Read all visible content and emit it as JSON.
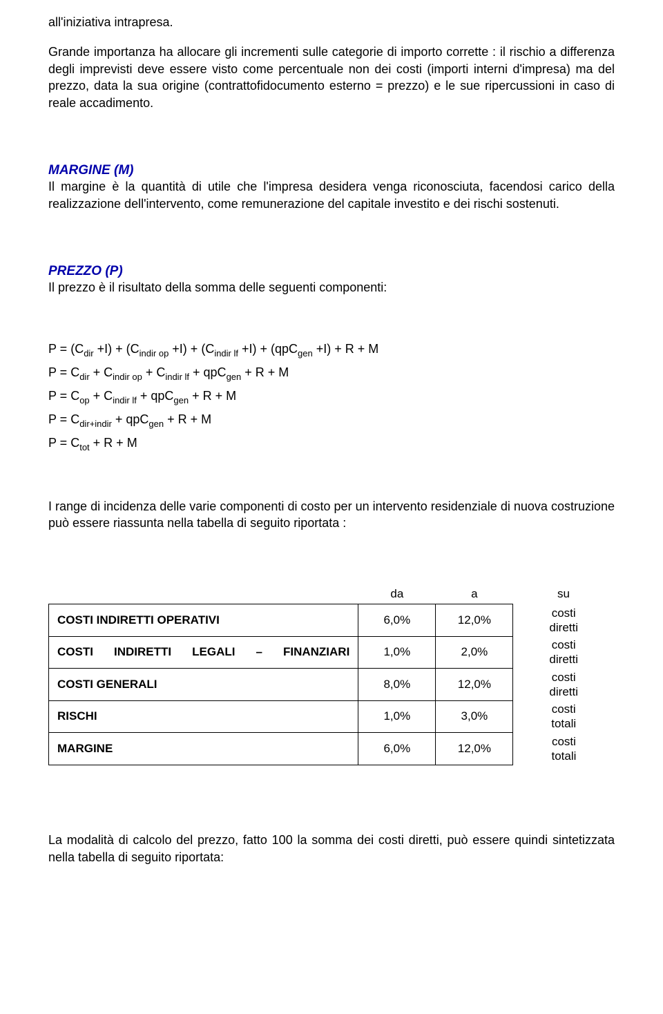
{
  "intro_fragment": "all'iniziativa intrapresa.",
  "intro_para": "Grande importanza ha allocare gli incrementi sulle categorie di importo corrette : il rischio a differenza degli imprevisti deve essere visto come percentuale non dei costi (importi interni d'impresa) ma del prezzo, data la sua origine (contrattofidocumento esterno = prezzo) e le sue ripercussioni in caso di reale accadimento.",
  "margine": {
    "title": "MARGINE (M)",
    "body": "Il margine è la quantità di utile che l'impresa desidera venga riconosciuta, facendosi carico della realizzazione dell'intervento, come remunerazione del capitale investito e dei rischi sostenuti."
  },
  "prezzo": {
    "title": "PREZZO (P)",
    "intro": "Il prezzo è il risultato della somma delle seguenti componenti:",
    "formulas_html": [
      "P = (C<span class='sub'>dir</span> +I) + (C<span class='sub'>indir op</span> +I) + (C<span class='sub'>indir lf</span> +I) + (qpC<span class='sub'>gen</span> +I) + R + M",
      "P = C<span class='sub'>dir</span> + C<span class='sub'>indir op</span> + C<span class='sub'>indir lf</span> + qpC<span class='sub'>gen</span> + R + M",
      "P = C<span class='sub'>op</span> + C<span class='sub'>indir lf</span> + qpC<span class='sub'>gen</span> + R + M",
      "P = C<span class='sub'>dir+indir</span> + qpC<span class='sub'>gen</span> + R + M",
      "P = C<span class='sub'>tot</span> + R + M"
    ]
  },
  "range_para": "I range di incidenza delle varie componenti di costo per un intervento residenziale di nuova costruzione può essere riassunta nella tabella di seguito riportata :",
  "table": {
    "headers": {
      "da": "da",
      "a": "a",
      "su": "su"
    },
    "rows": [
      {
        "label": "COSTI INDIRETTI OPERATIVI",
        "da": "6,0%",
        "a": "12,0%",
        "su1": "costi",
        "su2": "diretti",
        "justify": false
      },
      {
        "label": "COSTI INDIRETTI LEGALI – FINANZIARI",
        "da": "1,0%",
        "a": "2,0%",
        "su1": "costi",
        "su2": "diretti",
        "justify": true
      },
      {
        "label": "COSTI GENERALI",
        "da": "8,0%",
        "a": "12,0%",
        "su1": "costi",
        "su2": "diretti",
        "justify": false
      },
      {
        "label": "RISCHI",
        "da": "1,0%",
        "a": "3,0%",
        "su1": "costi",
        "su2": "totali",
        "justify": false
      },
      {
        "label": "MARGINE",
        "da": "6,0%",
        "a": "12,0%",
        "su1": "costi",
        "su2": "totali",
        "justify": false
      }
    ]
  },
  "closing_para": "La modalità di calcolo del prezzo, fatto 100 la somma dei costi diretti, può essere quindi sintetizzata nella tabella di seguito riportata:"
}
